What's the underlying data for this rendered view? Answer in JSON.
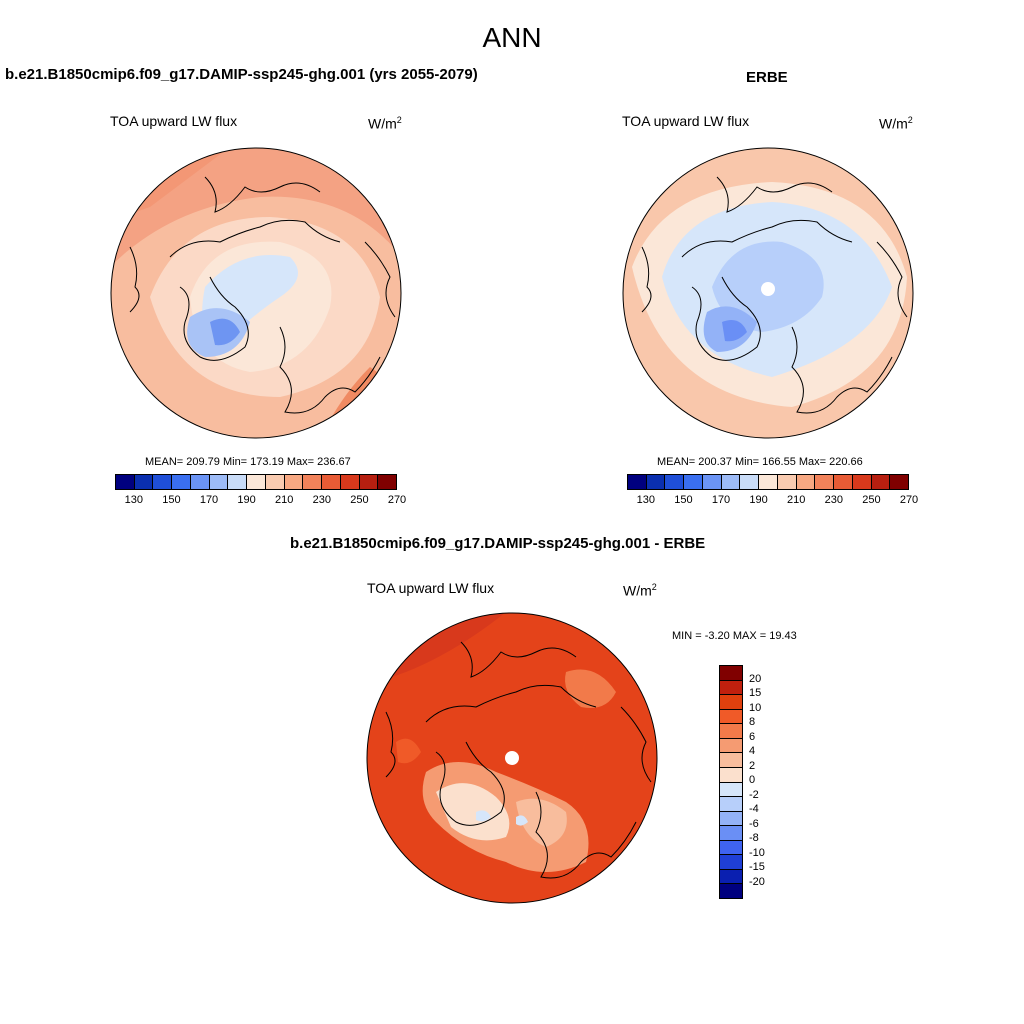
{
  "title": "ANN",
  "panels": [
    {
      "heading": "b.e21.B1850cmip6.f09_g17.DAMIP-ssp245-ghg.001 (yrs 2055-2079)",
      "variable": "TOA upward LW flux",
      "units_base": "W/m",
      "units_exp": "2",
      "stats": "MEAN= 209.79  Min= 173.19  Max= 236.67"
    },
    {
      "heading": "ERBE",
      "variable": "TOA upward LW flux",
      "units_base": "W/m",
      "units_exp": "2",
      "stats": "MEAN= 200.37  Min= 166.55  Max= 220.66"
    },
    {
      "heading": "b.e21.B1850cmip6.f09_g17.DAMIP-ssp245-ghg.001 - ERBE",
      "variable": "TOA upward LW flux",
      "units_base": "W/m",
      "units_exp": "2",
      "stats": "MIN =  -3.20 MAX =  19.43"
    }
  ],
  "abs_colorbar": {
    "colors": [
      "#00007f",
      "#0a2fb0",
      "#1f4fd8",
      "#3a6ff0",
      "#6b94f5",
      "#9dbbf7",
      "#c9dcf8",
      "#fbe7d8",
      "#f9cbb0",
      "#f7a882",
      "#f2825a",
      "#e85b35",
      "#d8391c",
      "#b71f10",
      "#800000"
    ],
    "labels": [
      "130",
      "150",
      "170",
      "190",
      "210",
      "230",
      "250",
      "270"
    ]
  },
  "diff_colorbar": {
    "colors": [
      "#800000",
      "#c0200e",
      "#e0400e",
      "#f05a28",
      "#f27a4a",
      "#f59b72",
      "#f8bd9d",
      "#fbe0cd",
      "#d6e6fa",
      "#b7cffa",
      "#93b2f7",
      "#6a8ff5",
      "#3f63f0",
      "#1f3fd6",
      "#0a1fb0",
      "#00007f"
    ],
    "labels": [
      "20",
      "15",
      "10",
      "8",
      "6",
      "4",
      "2",
      "0",
      "-2",
      "-4",
      "-6",
      "-8",
      "-10",
      "-15",
      "-20"
    ]
  }
}
